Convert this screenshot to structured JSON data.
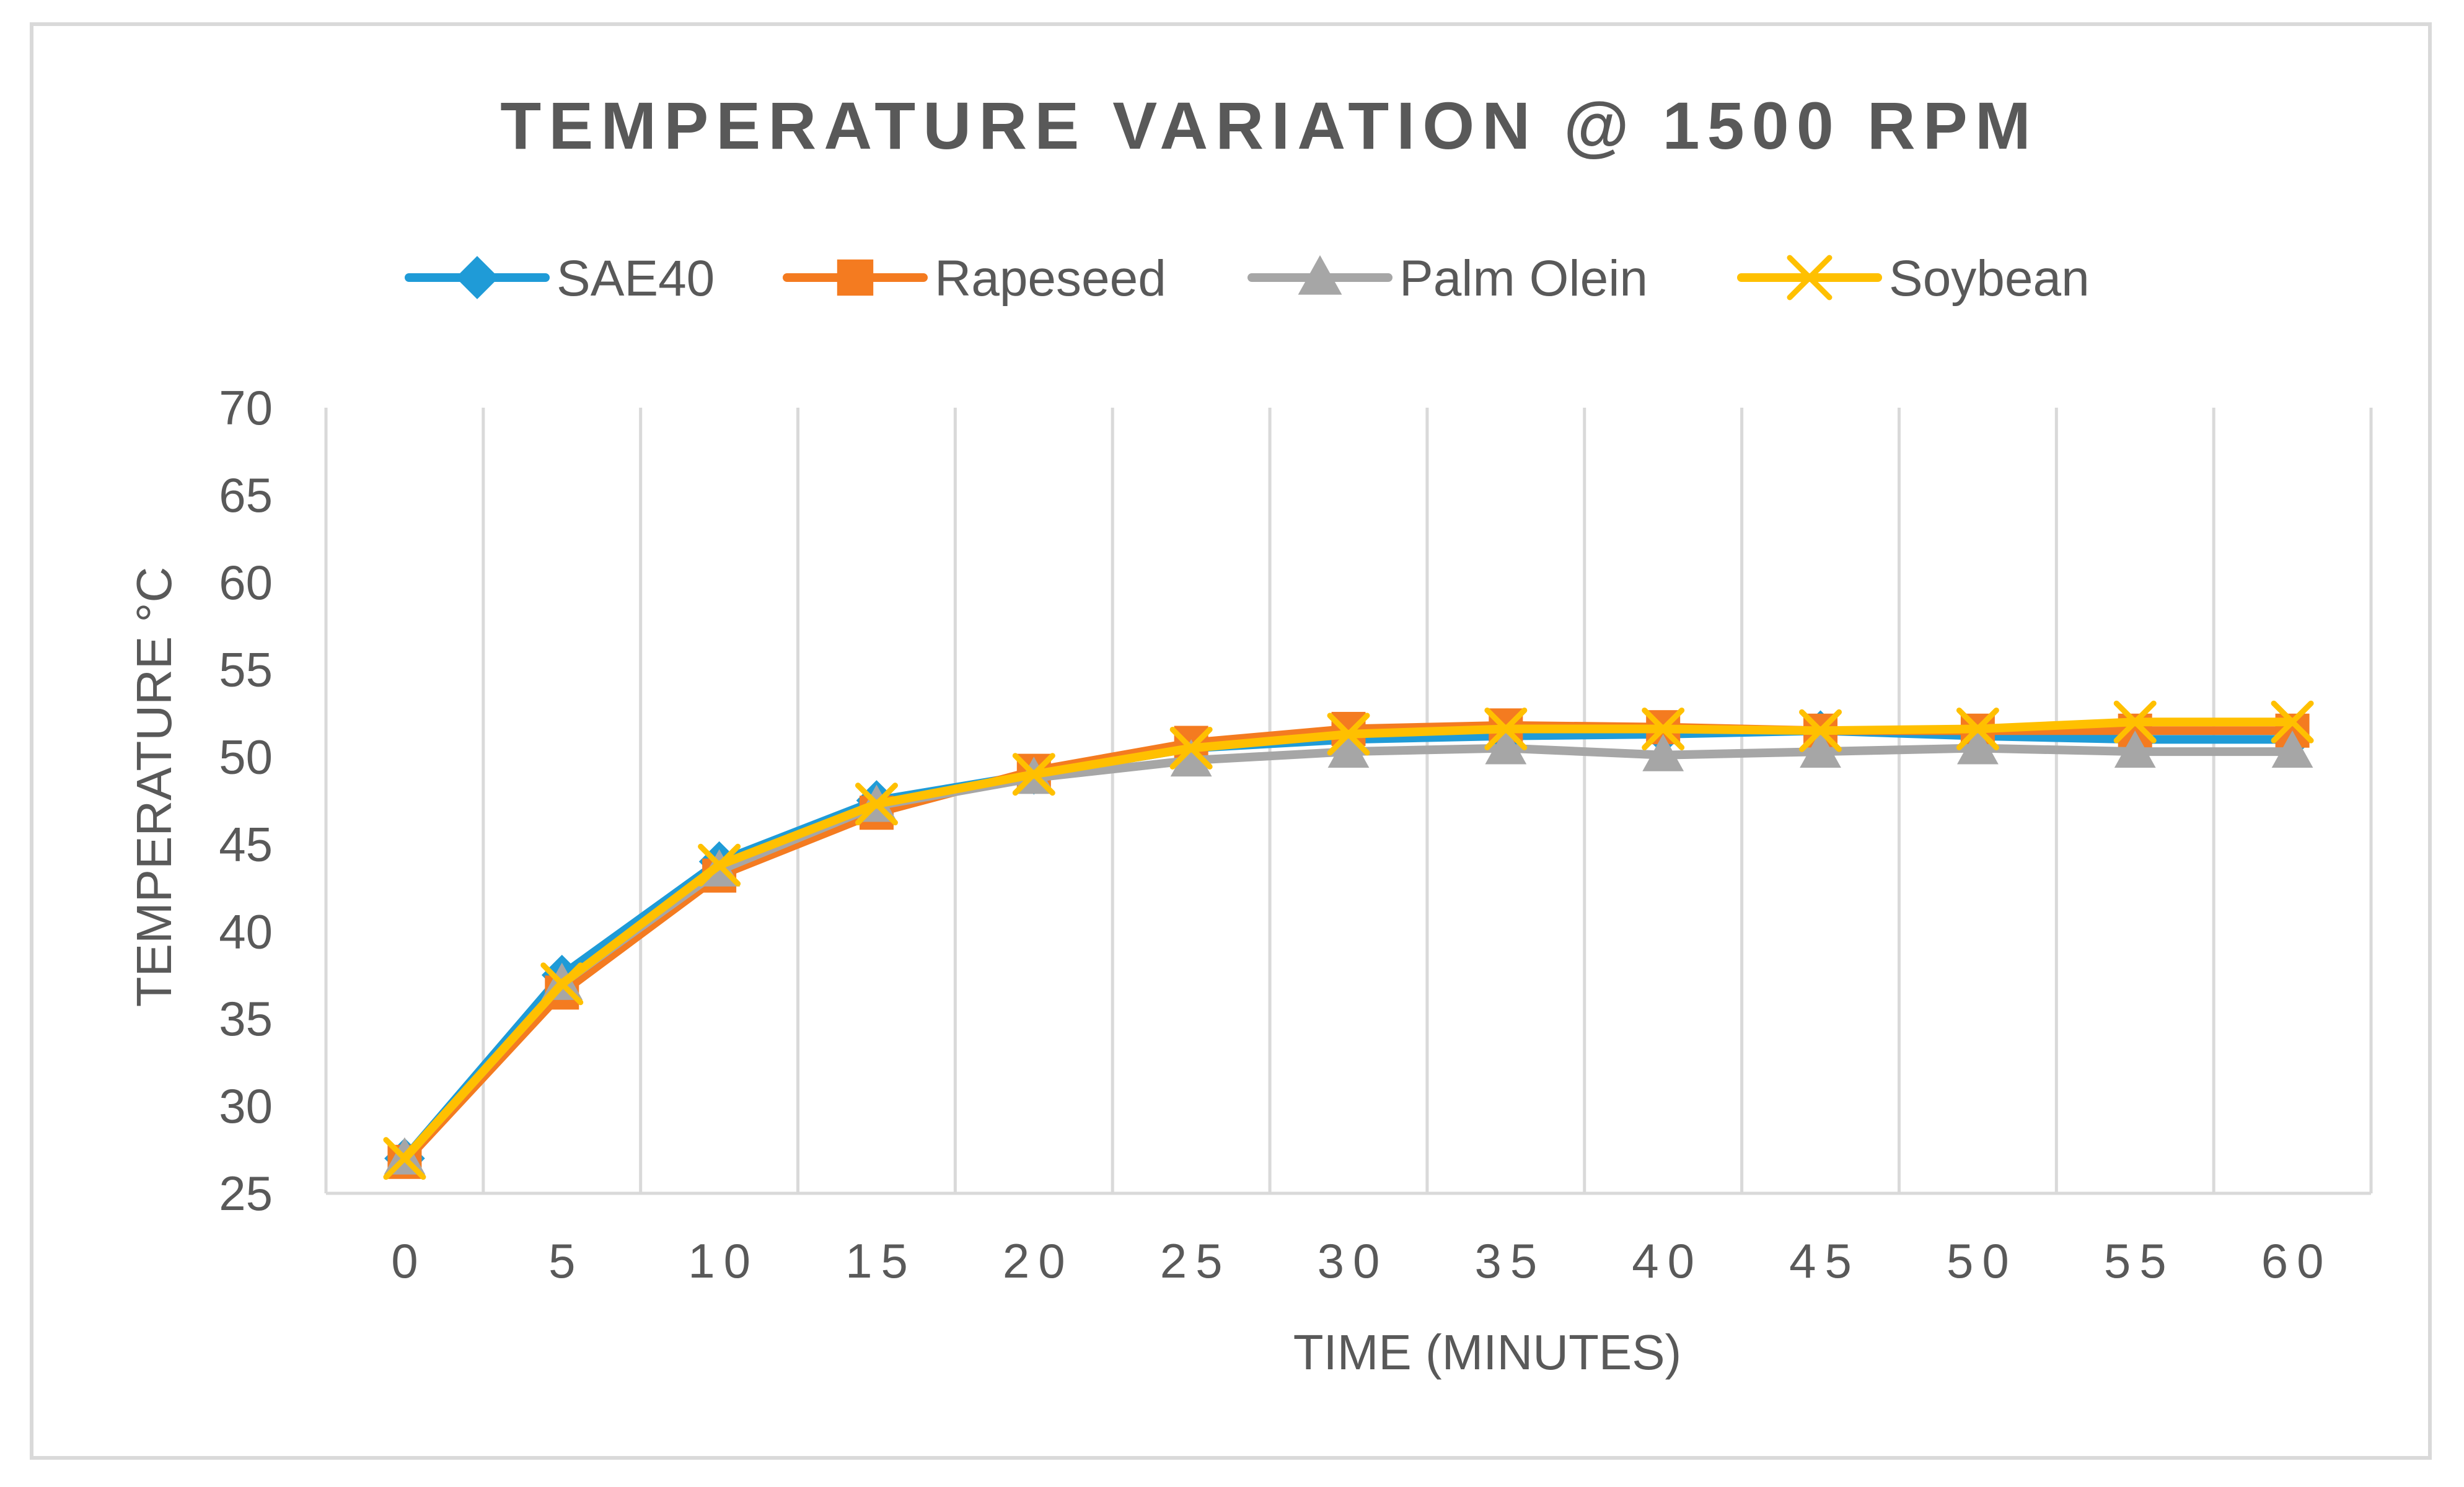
{
  "chart_data": {
    "type": "line",
    "title": "TEMPERATURE VARIATION @  1500 RPM",
    "xlabel": "TIME (MINUTES)",
    "ylabel": "TEMPERATURE °C",
    "x": [
      0,
      5,
      10,
      15,
      20,
      25,
      30,
      35,
      40,
      45,
      50,
      55,
      60
    ],
    "ylim": [
      25,
      70
    ],
    "yticks": [
      25,
      30,
      35,
      40,
      45,
      50,
      55,
      60,
      65,
      70
    ],
    "grid": "vertical",
    "legend_position": "top",
    "series": [
      {
        "name": "SAE40",
        "color": "#1f9bd7",
        "marker": "diamond",
        "values": [
          27,
          37.5,
          44,
          47.5,
          49,
          50.5,
          51,
          51.2,
          51.3,
          51.5,
          51.2,
          51,
          51
        ]
      },
      {
        "name": "Rapeseed",
        "color": "#f47b20",
        "marker": "square",
        "values": [
          26.8,
          36.5,
          43.2,
          46.8,
          49.2,
          50.8,
          51.6,
          51.8,
          51.7,
          51.5,
          51.5,
          51.5,
          51.5
        ]
      },
      {
        "name": "Palm Olein",
        "color": "#a6a6a6",
        "marker": "triangle",
        "values": [
          27,
          37,
          43.5,
          47.2,
          48.8,
          49.8,
          50.3,
          50.5,
          50.1,
          50.3,
          50.5,
          50.3,
          50.3
        ]
      },
      {
        "name": "Soybean",
        "color": "#ffc000",
        "marker": "x",
        "values": [
          27,
          37,
          43.8,
          47.3,
          49,
          50.5,
          51.3,
          51.6,
          51.6,
          51.5,
          51.6,
          52,
          52
        ]
      }
    ]
  }
}
